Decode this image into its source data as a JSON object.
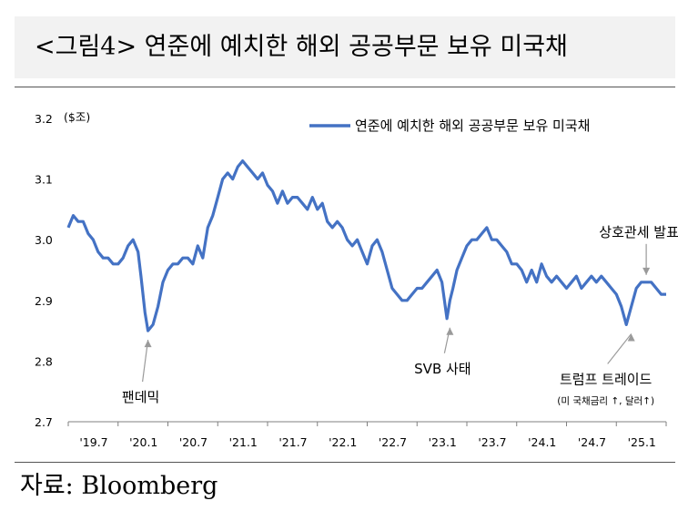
{
  "title": "<그림4> 연준에 예치한 해외 공공부문 보유 미국채",
  "source": "자료: Bloomberg",
  "chart_data": {
    "type": "line",
    "unit_label": "($조)",
    "ylim": [
      2.7,
      3.2
    ],
    "yticks": [
      "3.2",
      "3.1",
      "3.0",
      "2.9",
      "2.8",
      "2.7"
    ],
    "xticks": [
      "'19.7",
      "'20.1",
      "'20.7",
      "'21.1",
      "'21.7",
      "'22.1",
      "'22.7",
      "'23.1",
      "'23.7",
      "'24.1",
      "'24.7",
      "'25.1"
    ],
    "xlim": [
      2019.5,
      2025.5
    ],
    "grid": false,
    "legend_position": "top-right",
    "series": [
      {
        "name": "연준에 예치한 해외 공공부문 보유 미국채",
        "color": "#4472c4",
        "x": [
          2019.5,
          2019.55,
          2019.6,
          2019.65,
          2019.7,
          2019.75,
          2019.8,
          2019.85,
          2019.9,
          2019.95,
          2020.0,
          2020.05,
          2020.1,
          2020.15,
          2020.2,
          2020.23,
          2020.27,
          2020.3,
          2020.35,
          2020.4,
          2020.45,
          2020.5,
          2020.55,
          2020.6,
          2020.65,
          2020.7,
          2020.75,
          2020.8,
          2020.85,
          2020.9,
          2020.95,
          2021.0,
          2021.05,
          2021.1,
          2021.15,
          2021.2,
          2021.25,
          2021.3,
          2021.35,
          2021.4,
          2021.45,
          2021.5,
          2021.55,
          2021.6,
          2021.65,
          2021.7,
          2021.75,
          2021.8,
          2021.85,
          2021.9,
          2021.95,
          2022.0,
          2022.05,
          2022.1,
          2022.15,
          2022.2,
          2022.25,
          2022.3,
          2022.35,
          2022.4,
          2022.45,
          2022.5,
          2022.55,
          2022.6,
          2022.65,
          2022.7,
          2022.75,
          2022.8,
          2022.85,
          2022.9,
          2022.95,
          2023.0,
          2023.05,
          2023.1,
          2023.15,
          2023.2,
          2023.25,
          2023.3,
          2023.33,
          2023.36,
          2023.4,
          2023.45,
          2023.5,
          2023.55,
          2023.6,
          2023.65,
          2023.7,
          2023.75,
          2023.8,
          2023.85,
          2023.9,
          2023.95,
          2024.0,
          2024.05,
          2024.1,
          2024.15,
          2024.2,
          2024.25,
          2024.3,
          2024.35,
          2024.4,
          2024.45,
          2024.5,
          2024.55,
          2024.6,
          2024.65,
          2024.7,
          2024.75,
          2024.8,
          2024.85,
          2024.9,
          2024.95,
          2025.0,
          2025.05,
          2025.1,
          2025.15,
          2025.2,
          2025.25,
          2025.3,
          2025.35,
          2025.4,
          2025.45,
          2025.5
        ],
        "values": [
          3.02,
          3.04,
          3.03,
          3.03,
          3.01,
          3.0,
          2.98,
          2.97,
          2.97,
          2.96,
          2.96,
          2.97,
          2.99,
          3.0,
          2.98,
          2.94,
          2.88,
          2.85,
          2.86,
          2.89,
          2.93,
          2.95,
          2.96,
          2.96,
          2.97,
          2.97,
          2.96,
          2.99,
          2.97,
          3.02,
          3.04,
          3.07,
          3.1,
          3.11,
          3.1,
          3.12,
          3.13,
          3.12,
          3.11,
          3.1,
          3.11,
          3.09,
          3.08,
          3.06,
          3.08,
          3.06,
          3.07,
          3.07,
          3.06,
          3.05,
          3.07,
          3.05,
          3.06,
          3.03,
          3.02,
          3.03,
          3.02,
          3.0,
          2.99,
          3.0,
          2.98,
          2.96,
          2.99,
          3.0,
          2.98,
          2.95,
          2.92,
          2.91,
          2.9,
          2.9,
          2.91,
          2.92,
          2.92,
          2.93,
          2.94,
          2.95,
          2.93,
          2.87,
          2.9,
          2.92,
          2.95,
          2.97,
          2.99,
          3.0,
          3.0,
          3.01,
          3.02,
          3.0,
          3.0,
          2.99,
          2.98,
          2.96,
          2.96,
          2.95,
          2.93,
          2.95,
          2.93,
          2.96,
          2.94,
          2.93,
          2.94,
          2.93,
          2.92,
          2.93,
          2.94,
          2.92,
          2.93,
          2.94,
          2.93,
          2.94,
          2.93,
          2.92,
          2.91,
          2.89,
          2.86,
          2.89,
          2.92,
          2.93,
          2.93,
          2.93,
          2.92,
          2.91,
          2.91
        ]
      }
    ],
    "annotations": [
      {
        "label": "팬데믹",
        "x": 2020.3,
        "y": 2.85
      },
      {
        "label": "SVB 사태",
        "x": 2023.33,
        "y": 2.87
      },
      {
        "label": "트럼프 트레이드",
        "sublabel": "(미 국채금리 ↑, 달러↑)",
        "x": 2025.15,
        "y": 2.86
      },
      {
        "label": "상호관세 발표",
        "x": 2025.3,
        "y": 2.93
      }
    ]
  }
}
